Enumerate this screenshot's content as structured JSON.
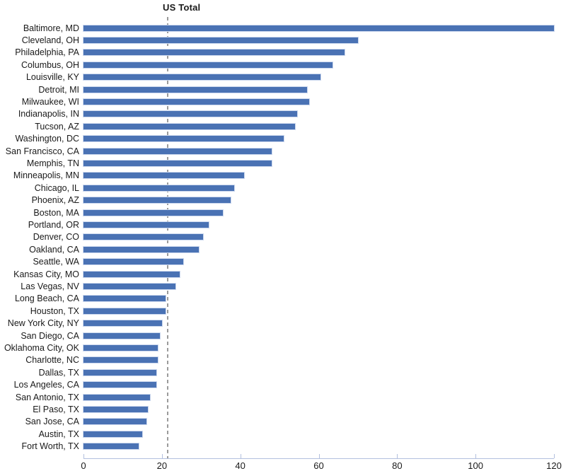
{
  "chart_data": {
    "type": "bar",
    "orientation": "horizontal",
    "title": "",
    "xlabel": "",
    "ylabel": "",
    "xlim": [
      0,
      120
    ],
    "x_ticks": [
      0,
      20,
      40,
      60,
      80,
      100,
      120
    ],
    "grid": false,
    "legend": "none",
    "reference_line": {
      "label": "US Total",
      "value": 21.5,
      "style": "dashed",
      "color": "#9b9b9b"
    },
    "bar_color": "#4a72b4",
    "axis_color": "#b3c0de",
    "categories": [
      "Baltimore, MD",
      "Cleveland, OH",
      "Philadelphia, PA",
      "Columbus, OH",
      "Louisville, KY",
      "Detroit, MI",
      "Milwaukee, WI",
      "Indianapolis, IN",
      "Tucson, AZ",
      "Washington, DC",
      "San Francisco, CA",
      "Memphis, TN",
      "Minneapolis, MN",
      "Chicago, IL",
      "Phoenix, AZ",
      "Boston, MA",
      "Portland, OR",
      "Denver, CO",
      "Oakland, CA",
      "Seattle, WA",
      "Kansas City, MO",
      "Las Vegas, NV",
      "Long Beach, CA",
      "Houston, TX",
      "New York City, NY",
      "San Diego, CA",
      "Oklahoma City, OK",
      "Charlotte, NC",
      "Dallas, TX",
      "Los Angeles, CA",
      "San Antonio, TX",
      "El Paso, TX",
      "San Jose, CA",
      "Austin, TX",
      "Fort Worth, TX"
    ],
    "values": [
      120,
      70,
      66.5,
      63.5,
      60.5,
      57,
      57.5,
      54.5,
      54,
      51,
      48,
      48,
      41,
      38.5,
      37.5,
      35.5,
      32,
      30.5,
      29.5,
      25.5,
      24.5,
      23.5,
      21,
      21,
      20,
      19.5,
      19,
      19,
      18.5,
      18.5,
      17,
      16.5,
      16,
      15,
      14
    ]
  }
}
